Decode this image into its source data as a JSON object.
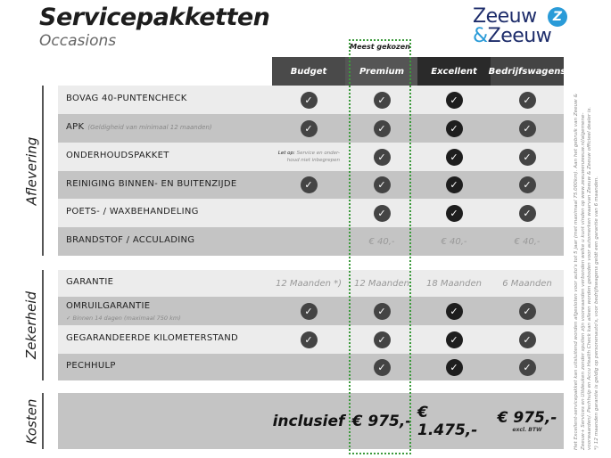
{
  "header": {
    "title": "Servicepakketten",
    "subtitle": "Occasions",
    "logo_line1": "Zeeuw",
    "logo_amp": "&",
    "logo_line2": "Zeeuw",
    "popular_label": "Meest gekozen"
  },
  "colors": {
    "accent": "#2a9bd8",
    "brand": "#1e2d6b",
    "popular_border": "#3c9a3c",
    "row_light": "#ececec",
    "row_dark": "#c4c4c4"
  },
  "columns": [
    {
      "label": "Budget",
      "color": "#4a4a4a"
    },
    {
      "label": "Premium",
      "color": "#555555"
    },
    {
      "label": "Excellent",
      "color": "#2a2a2a"
    },
    {
      "label": "Bedrijfswagens",
      "color": "#444444"
    }
  ],
  "sections": [
    {
      "label": "Aflevering",
      "rows": [
        {
          "label": "BOVAG 40-PUNTENCHECK",
          "cells": [
            "check",
            "check",
            "check",
            "check"
          ]
        },
        {
          "label": "APK",
          "note": "(Geldigheid van minimaal 12 maanden)",
          "cells": [
            "check",
            "check",
            "check",
            "check"
          ]
        },
        {
          "label": "ONDERHOUDSPAKKET",
          "cells": [
            "note",
            "check",
            "check",
            "check"
          ],
          "budget_note_bold": "Let op:",
          "budget_note": "Service en onder-houd niet inbegrepen"
        },
        {
          "label": "REINIGING BINNEN- EN BUITENZIJDE",
          "cells": [
            "check",
            "check",
            "check",
            "check"
          ]
        },
        {
          "label": "POETS- / WAXBEHANDELING",
          "cells": [
            "",
            "check",
            "check",
            "check"
          ]
        },
        {
          "label": "BRANDSTOF / ACCULADING",
          "cells": [
            "",
            "€ 40,-",
            "€ 40,-",
            "€ 40,-"
          ]
        }
      ]
    },
    {
      "label": "Zekerheid",
      "rows": [
        {
          "label": "GARANTIE",
          "cells": [
            "12 Maanden *)",
            "12 Maanden",
            "18 Maanden",
            "6 Maanden"
          ]
        },
        {
          "label": "OMRUILGARANTIE",
          "sub": "✓  Binnen 14 dagen (maximaal 750 km)",
          "cells": [
            "check",
            "check",
            "check",
            "check"
          ]
        },
        {
          "label": "GEGARANDEERDE KILOMETERSTAND",
          "cells": [
            "check",
            "check",
            "check",
            "check"
          ]
        },
        {
          "label": "PECHHULP",
          "cells": [
            "",
            "check",
            "check",
            "check"
          ]
        }
      ]
    },
    {
      "label": "Kosten",
      "rows": [
        {
          "label": "",
          "cells": [
            "inclusief",
            "€ 975,-",
            "€ 1.475,-",
            "€ 975,-"
          ],
          "last_note": "excl. BTW"
        }
      ]
    }
  ],
  "footnote": "Het Excellent-servicepakket kan uitsluitend worden afgesloten voor auto's tot 5 jaar (met maximaal 75.000km). Aan het gebruik van Zeeuw & Zeeuw+ Services en Uitdeuken zonder spuiten zijn voorwaarden verbonden welke u kunt vinden op www.zeeuwenzeeuw.nl/algemene-voorwaarden/. Pechhulp en Accu Health Check kan alleen worden geboden voor automerken waarvan Zeeuw & Zeeuw officieel dealer is.",
  "footnote2": "*) 12 maanden garantie is geldig op personenauto's, voor bedrijfswagens geldt een garantie van 6 maanden."
}
